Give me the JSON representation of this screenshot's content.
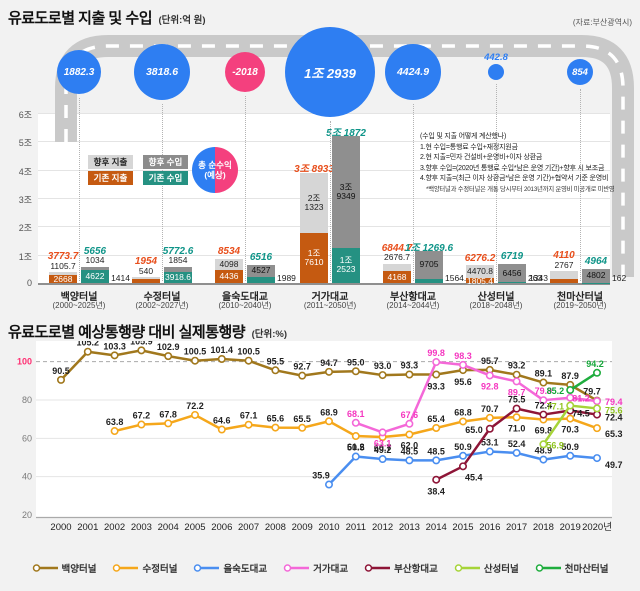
{
  "colors": {
    "expense_future": "#d6d6d6",
    "expense_existing": "#c55a11",
    "income_future": "#8f8f8f",
    "income_existing": "#259182",
    "bubble_positive": "#2e7ef2",
    "bubble_negative": "#f4407e",
    "expense_total_label": "#e84e1b",
    "income_total_label": "#0e9488",
    "highlight_tick": "#ff2e72"
  },
  "chart_data": [
    {
      "type": "bar",
      "title": "유료도로별 지출 및 수입",
      "unit": "(단위:억 원)",
      "source": "(자료:부산광역시)",
      "y_ticks": [
        "6조",
        "5조",
        "4조",
        "3조",
        "2조",
        "1조",
        "0"
      ],
      "ylim": [
        0,
        60000
      ],
      "categories": [
        "백양터널",
        "수정터널",
        "을숙도대교",
        "거가대교",
        "부산항대교",
        "산성터널",
        "천마산터널"
      ],
      "periods": [
        "(2000~2025년)",
        "(2002~2027년)",
        "(2010~2040년)",
        "(2011~2050년)",
        "(2014~2044년)",
        "(2018~2048년)",
        "(2019~2050년)"
      ],
      "series": [
        {
          "name": "향후 지출",
          "values": [
            1105.7,
            540,
            4098,
            21323,
            2676.7,
            4470.8,
            2767
          ],
          "labels": [
            "1105.7",
            "540",
            "4098",
            "2조 1323",
            "2676.7",
            "4470.8",
            "2767"
          ]
        },
        {
          "name": "기존 지출",
          "values": [
            2668,
            1414,
            4436,
            17610,
            4168,
            1805.4,
            1343
          ],
          "labels": [
            "2668",
            "1414",
            "4436",
            "1조 7610",
            "4168",
            "1805.4",
            "1343"
          ]
        },
        {
          "name": "향후 수입",
          "values": [
            1034,
            1854,
            4527,
            39349,
            9705,
            6456,
            4802
          ],
          "labels": [
            "1034",
            "1854",
            "4527",
            "3조 9349",
            "9705",
            "6456",
            "4802"
          ]
        },
        {
          "name": "기존 수입",
          "values": [
            4622,
            3918.6,
            1989,
            12523,
            1564.6,
            263,
            162
          ],
          "labels": [
            "4622",
            "3918.6",
            "1989",
            "1조 2523",
            "1564.6",
            "263",
            "162"
          ]
        }
      ],
      "expense_totals": [
        "3773.7",
        "1954",
        "8534",
        "3조 8933",
        "6844.7",
        "6276.2",
        "4110"
      ],
      "income_totals": [
        "5656",
        "5772.6",
        "6516",
        "5조 1872",
        "1조 1269.6",
        "6719",
        "4964"
      ],
      "net_values": [
        "1882.3",
        "3818.6",
        "-2018",
        "1조 2939",
        "4424.9",
        "442.8",
        "854"
      ],
      "net_label_1": "총 순수익",
      "net_label_2": "(예상)",
      "notes": [
        "(수입 및 지출 어떻게 계산했나)",
        "1.현 수입=통행료 수입+재정지원금",
        "2.현 지출=민자 건설비+운영비+이자 상환금",
        "3.향후 수입=(2020년 통행료 수입*남은 운영 기간)+향후 시 보조금",
        "4.향후 지출=(최근 이자 상환금*남은 운영 기간)+협약서 기준 운영비",
        "*백양터널과 수정터널은 개통 당시부터 2013년까지 운영비 미공개로 미반영"
      ]
    },
    {
      "type": "line",
      "title": "유료도로별 예상통행량 대비 실제통행량",
      "unit": "(단위:%)",
      "y_ticks": [
        120,
        100,
        80,
        60,
        40,
        20
      ],
      "ylim": [
        20,
        120
      ],
      "highlight_y": 100,
      "x_labels": [
        "2000",
        "2001",
        "2002",
        "2003",
        "2004",
        "2005",
        "2006",
        "2007",
        "2008",
        "2009",
        "2010",
        "2011",
        "2012",
        "2013",
        "2014",
        "2015",
        "2016",
        "2017",
        "2018",
        "2019",
        "2020년"
      ],
      "series": [
        {
          "name": "백양터널",
          "color": "#a1781d",
          "start": 2000,
          "values": [
            90.5,
            105.2,
            103.3,
            105.9,
            102.9,
            100.5,
            101.4,
            100.5,
            95.5,
            92.7,
            94.7,
            95.0,
            93.0,
            93.3,
            93.3,
            95.6,
            95.7,
            93.2,
            89.1,
            87.9,
            79.7
          ]
        },
        {
          "name": "수정터널",
          "color": "#f5a71b",
          "start": 2002,
          "values": [
            63.8,
            67.2,
            67.8,
            72.2,
            64.6,
            67.1,
            65.6,
            65.5,
            68.9,
            61.2,
            60.7,
            62.0,
            65.4,
            68.8,
            70.7,
            71.0,
            69.8,
            70.3,
            65.3
          ]
        },
        {
          "name": "을숙도대교",
          "color": "#4a8ef0",
          "start": 2010,
          "values": [
            35.9,
            50.5,
            49.2,
            48.5,
            48.5,
            50.9,
            53.1,
            52.4,
            48.9,
            50.9,
            49.7
          ]
        },
        {
          "name": "거가대교",
          "color": "#f468d8",
          "start": 2011,
          "values": [
            68.1,
            63.1,
            67.6,
            99.8,
            98.3,
            92.8,
            89.7,
            79.9,
            81.2,
            79.4
          ]
        },
        {
          "name": "부산항대교",
          "color": "#8e1537",
          "start": 2014,
          "values": [
            38.4,
            45.4,
            65.0,
            75.5,
            72.4,
            74.5,
            72.4
          ]
        },
        {
          "name": "산성터널",
          "color": "#a6d438",
          "start": 2018,
          "values": [
            56.9,
            77.1,
            75.6
          ]
        },
        {
          "name": "천마산터널",
          "color": "#1fad3e",
          "start": 2019,
          "values": [
            85.2,
            94.2
          ]
        }
      ]
    }
  ]
}
